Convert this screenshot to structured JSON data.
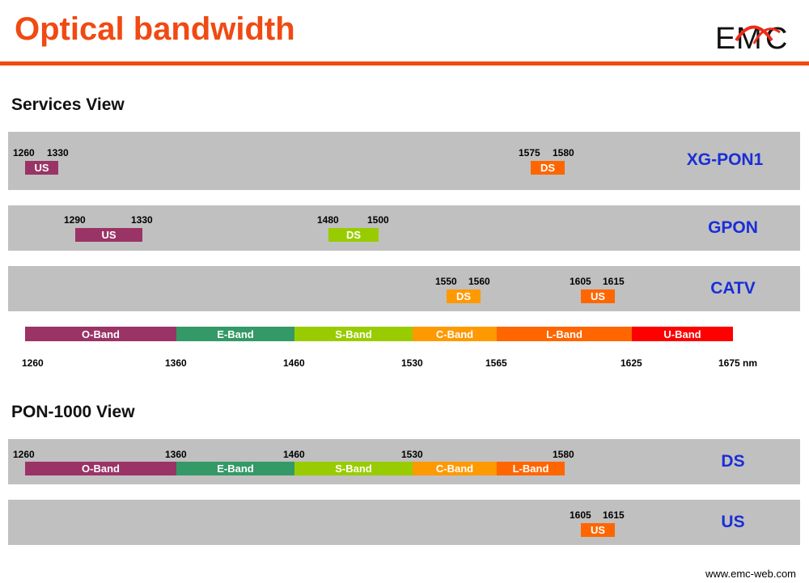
{
  "header": {
    "title": "Optical bandwidth",
    "logo_text": "EMC"
  },
  "colors": {
    "accent": "#f04a12",
    "panel": "#c0c0c0",
    "service_name": "#1a2ed6",
    "o_band": "#9a3366",
    "e_band": "#339966",
    "s_band": "#99cc00",
    "c_band": "#ff9900",
    "l_band": "#ff6600",
    "u_band": "#ff0000",
    "us": "#9a3366",
    "ds_orange": "#ff6600",
    "ds_green": "#99cc00",
    "ds_amber": "#ff9900"
  },
  "services_view": {
    "title": "Services View",
    "rows": [
      {
        "name": "XG-PON1",
        "num1": "1260",
        "num2": "1330",
        "us_label": "US",
        "num3": "1575",
        "num4": "1580",
        "ds_label": "DS"
      },
      {
        "name": "GPON",
        "num1": "1290",
        "num2": "1330",
        "us_label": "US",
        "num3": "1480",
        "num4": "1500",
        "ds_label": "DS"
      },
      {
        "name": "CATV",
        "num1": "1550",
        "num2": "1560",
        "ds_label": "DS",
        "num3": "1605",
        "num4": "1615",
        "us_label": "US"
      }
    ]
  },
  "bands": {
    "labels": [
      "O-Band",
      "E-Band",
      "S-Band",
      "C-Band",
      "L-Band",
      "U-Band"
    ],
    "axis_ticks": [
      "1260",
      "1360",
      "1460",
      "1530",
      "1565",
      "1625",
      "1675 nm"
    ]
  },
  "pon_view": {
    "title": "PON-1000 View",
    "ds": {
      "name": "DS",
      "ticks": [
        "1260",
        "1360",
        "1460",
        "1530",
        "1580"
      ],
      "labels": [
        "O-Band",
        "E-Band",
        "S-Band",
        "C-Band",
        "L-Band"
      ]
    },
    "us": {
      "name": "US",
      "num1": "1605",
      "num2": "1615",
      "label": "US"
    }
  },
  "footer": {
    "url": "www.emc-web.com"
  }
}
